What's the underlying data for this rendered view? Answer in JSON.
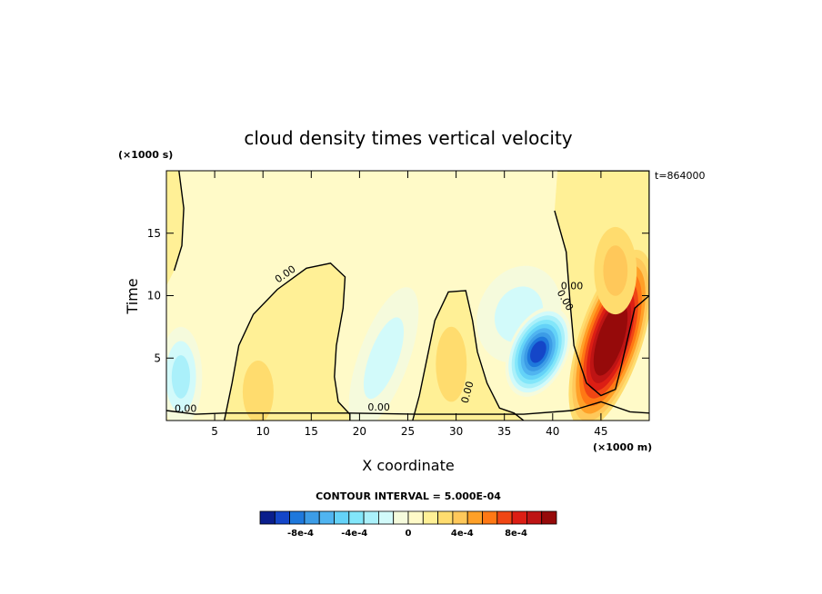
{
  "chart_data": {
    "type": "heatmap",
    "title": "cloud density times vertical velocity",
    "xlabel": "X coordinate",
    "ylabel": "Time",
    "x_unit": "(×1000 m)",
    "y_unit": "(×1000 s)",
    "time_stamp": "t=864000",
    "xlim": [
      0,
      50
    ],
    "ylim": [
      0,
      20
    ],
    "x_ticks": [
      5,
      10,
      15,
      20,
      25,
      30,
      35,
      40,
      45
    ],
    "y_ticks": [
      5,
      10,
      15
    ],
    "contour_interval": "CONTOUR INTERVAL = 5.000E-04",
    "contour_labels": [
      "0.00",
      "0.00",
      "0.00",
      "0.00",
      "0.00",
      "0.00"
    ],
    "colorbar": {
      "min": -0.0011,
      "max": 0.0011,
      "step": 0.0001,
      "labels": [
        "-8e-4",
        "-4e-4",
        "0",
        "4e-4",
        "8e-4"
      ],
      "colors": [
        "#0a1e8c",
        "#1446c8",
        "#1e78dc",
        "#3c9ce6",
        "#50b4f0",
        "#64d2f8",
        "#82e6fa",
        "#aaf0fa",
        "#d2fafa",
        "#f5fadc",
        "#fffac8",
        "#fff096",
        "#ffdc6e",
        "#ffc85a",
        "#ffa028",
        "#ff7814",
        "#f04614",
        "#dc1e14",
        "#be1414",
        "#960a0a"
      ]
    },
    "features": [
      {
        "x": 1.5,
        "y": 3.5,
        "value": -0.00035
      },
      {
        "x": 9.5,
        "y": 2.3,
        "value": 0.00015
      },
      {
        "x": 22.5,
        "y": 5.0,
        "value": -0.00025
      },
      {
        "x": 29.5,
        "y": 4.5,
        "value": 0.0001
      },
      {
        "x": 36.5,
        "y": 8.5,
        "value": -0.0003
      },
      {
        "x": 38.5,
        "y": 5.5,
        "value": -0.0009
      },
      {
        "x": 46.0,
        "y": 6.5,
        "value": 0.001
      },
      {
        "x": 46.5,
        "y": 12.0,
        "value": 0.0002
      }
    ]
  }
}
